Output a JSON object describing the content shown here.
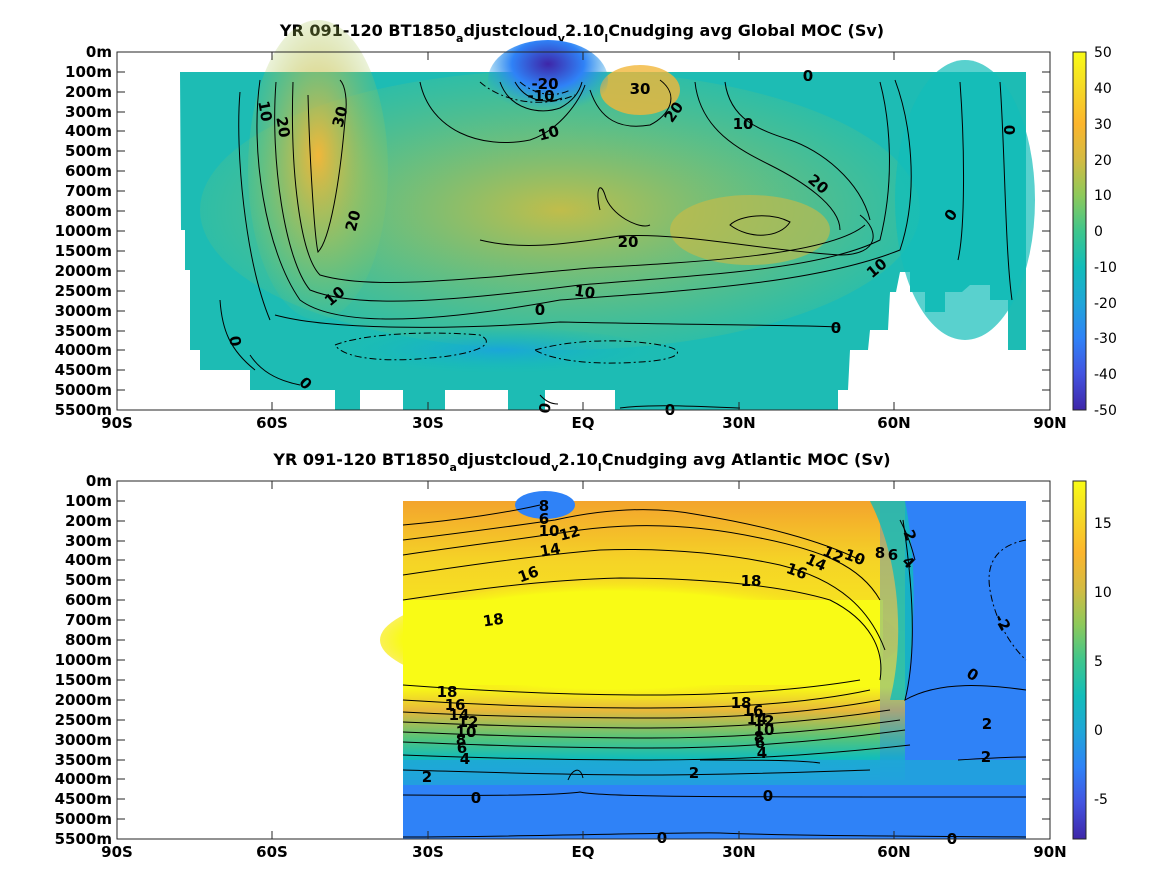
{
  "chart_data": [
    {
      "type": "heatmap",
      "title_main": "YR 091-120 BT1850",
      "title_sub1": "a",
      "title_mid1": "djustcloud",
      "title_sub2": "v",
      "title_mid2": "2.10",
      "title_sub3": "l",
      "title_tail": "Cnudging avg  Global MOC (Sv)",
      "x_ticks": [
        "90S",
        "60S",
        "30S",
        "EQ",
        "30N",
        "60N",
        "90N"
      ],
      "y_ticks": [
        "0m",
        "100m",
        "200m",
        "300m",
        "400m",
        "500m",
        "600m",
        "700m",
        "800m",
        "1000m",
        "1500m",
        "2000m",
        "2500m",
        "3000m",
        "3500m",
        "4000m",
        "4500m",
        "5000m",
        "5500m"
      ],
      "colorbar": {
        "min": -50,
        "max": 50,
        "ticks": [
          "50",
          "40",
          "30",
          "20",
          "10",
          "0",
          "-10",
          "-20",
          "-30",
          "-40",
          "-50"
        ]
      },
      "contour_labels": [
        "-20",
        "-10",
        "10",
        "20",
        "30",
        "10",
        "20",
        "30",
        "20",
        "10",
        "0",
        "0",
        "20",
        "10",
        "0",
        "10",
        "20",
        "0",
        "0",
        "0",
        "0",
        "0",
        "0"
      ],
      "colormap": [
        "#3e26a8",
        "#4353e0",
        "#2f82f7",
        "#1fa6d8",
        "#12bdb9",
        "#3fc68c",
        "#8ec95a",
        "#d4bb42",
        "#fcb52c",
        "#f5d926",
        "#f9fb15"
      ]
    },
    {
      "type": "heatmap",
      "title_main": "YR 091-120 BT1850",
      "title_sub1": "a",
      "title_mid1": "djustcloud",
      "title_sub2": "v",
      "title_mid2": "2.10",
      "title_sub3": "l",
      "title_tail": "Cnudging avg  Atlantic MOC (Sv)",
      "x_ticks": [
        "90S",
        "60S",
        "30S",
        "EQ",
        "30N",
        "60N",
        "90N"
      ],
      "y_ticks": [
        "0m",
        "100m",
        "200m",
        "300m",
        "400m",
        "500m",
        "600m",
        "700m",
        "800m",
        "1000m",
        "1500m",
        "2000m",
        "2500m",
        "3000m",
        "3500m",
        "4000m",
        "4500m",
        "5000m",
        "5500m"
      ],
      "colorbar": {
        "min": -8,
        "max": 18,
        "ticks": [
          "15",
          "10",
          "5",
          "0",
          "-5"
        ]
      },
      "contour_labels": [
        "8",
        "6",
        "10",
        "12",
        "14",
        "16",
        "18",
        "18",
        "16",
        "14",
        "12",
        "10",
        "8",
        "6",
        "4",
        "2",
        "-2",
        "0",
        "18",
        "16",
        "14",
        "12",
        "10",
        "8",
        "6",
        "4",
        "18",
        "16",
        "14",
        "12",
        "10",
        "8",
        "6",
        "4",
        "2",
        "2",
        "2",
        "2",
        "0",
        "0",
        "0",
        "0"
      ],
      "colormap": [
        "#3e26a8",
        "#4353e0",
        "#2f82f7",
        "#1fa6d8",
        "#12bdb9",
        "#3fc68c",
        "#8ec95a",
        "#d4bb42",
        "#fcb52c",
        "#f5d926",
        "#f9fb15"
      ]
    }
  ]
}
